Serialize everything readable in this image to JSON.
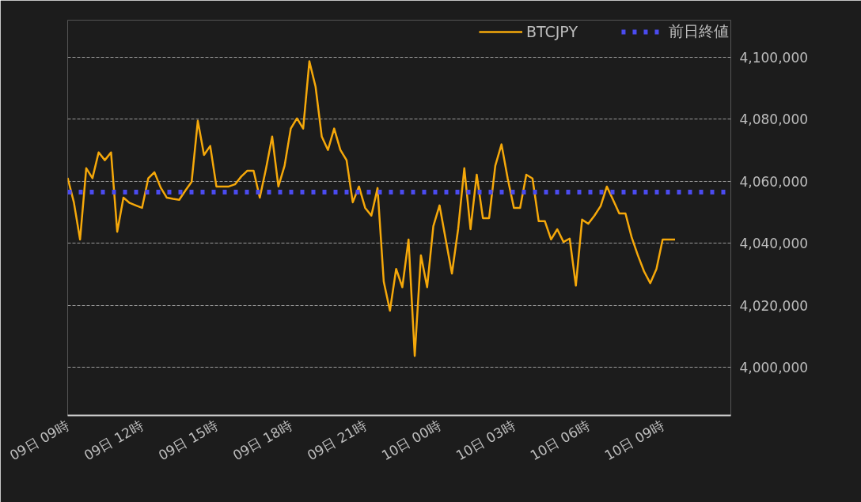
{
  "chart_data": {
    "type": "line",
    "categories": [
      "09日 09時",
      null,
      null,
      null,
      null,
      null,
      null,
      null,
      null,
      null,
      null,
      null,
      "09日 12時",
      null,
      null,
      null,
      null,
      null,
      null,
      null,
      null,
      null,
      null,
      null,
      "09日 15時",
      null,
      null,
      null,
      null,
      null,
      null,
      null,
      null,
      null,
      null,
      null,
      "09日 18時",
      null,
      null,
      null,
      null,
      null,
      null,
      null,
      null,
      null,
      null,
      null,
      "09日 21時",
      null,
      null,
      null,
      null,
      null,
      null,
      null,
      null,
      null,
      null,
      null,
      "10日 00時",
      null,
      null,
      null,
      null,
      null,
      null,
      null,
      null,
      null,
      null,
      null,
      "10日 03時",
      null,
      null,
      null,
      null,
      null,
      null,
      null,
      null,
      null,
      null,
      null,
      "10日 06時",
      null,
      null,
      null,
      null,
      null,
      null,
      null,
      null,
      null,
      null,
      null,
      "10日 09時",
      null,
      null,
      null,
      null,
      null,
      null,
      null,
      null,
      null,
      null,
      null
    ],
    "series": [
      {
        "name": "BTCJPY",
        "color": "#f5a80a",
        "values": [
          4061100,
          4053200,
          4041200,
          4064200,
          4061000,
          4069300,
          4066800,
          4069300,
          4043700,
          4054700,
          4053000,
          4052200,
          4051400,
          4060900,
          4062900,
          4058000,
          4054700,
          4054300,
          4054000,
          4057000,
          4059800,
          4079500,
          4068500,
          4071400,
          4058300,
          4058300,
          4058300,
          4059000,
          4061500,
          4063400,
          4063400,
          4054700,
          4064000,
          4074400,
          4058300,
          4065000,
          4077000,
          4080300,
          4077000,
          4098700,
          4090500,
          4074400,
          4070100,
          4077000,
          4070100,
          4066800,
          4053200,
          4058300,
          4051400,
          4048900,
          4057800,
          4027600,
          4018200,
          4031700,
          4025800,
          4041200,
          4003600,
          4036100,
          4025800,
          4045500,
          4052200,
          4041200,
          4030200,
          4044500,
          4064200,
          4044500,
          4062100,
          4048100,
          4048100,
          4065000,
          4071900,
          4060900,
          4051400,
          4051400,
          4062100,
          4060900,
          4047100,
          4047100,
          4041200,
          4044500,
          4040400,
          4041500,
          4026300,
          4047600,
          4046300,
          4048900,
          4052000,
          4058300,
          4054000,
          4049600,
          4049600,
          4041900,
          4036100,
          4030900,
          4027100,
          4031700,
          4041200,
          4041200,
          4041200,
          null,
          null,
          null,
          null,
          null,
          null,
          null,
          null,
          null
        ]
      }
    ],
    "ref_lines": [
      {
        "axis": "y",
        "value": 4056500,
        "label": "前日終値",
        "color": "#4b4bf0",
        "line_style": "dotted"
      }
    ],
    "ylim": [
      3984400,
      4112000
    ],
    "yticks": [
      {
        "value": 4000000,
        "label": "4,000,000"
      },
      {
        "value": 4020000,
        "label": "4,020,000"
      },
      {
        "value": 4040000,
        "label": "4,040,000"
      },
      {
        "value": 4060000,
        "label": "4,060,000"
      },
      {
        "value": 4080000,
        "label": "4,080,000"
      },
      {
        "value": 4100000,
        "label": "4,100,000"
      }
    ],
    "grid": "y",
    "legend": "top right"
  }
}
